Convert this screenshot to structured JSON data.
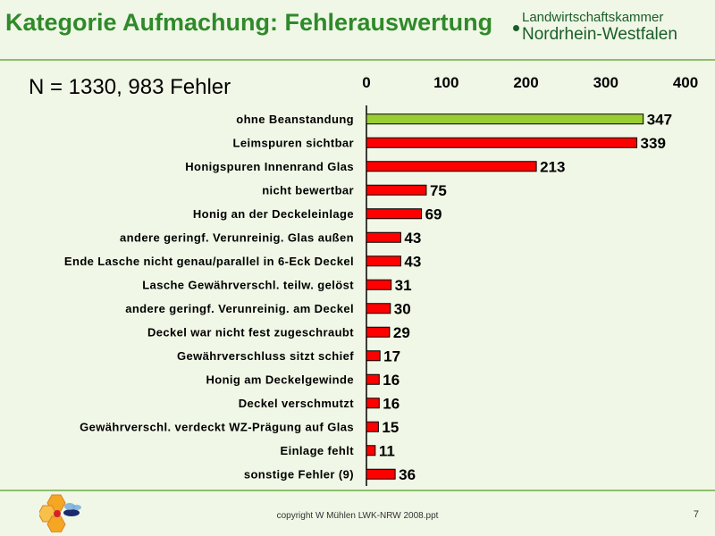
{
  "slide": {
    "title": "Kategorie Aufmachung: Fehlerauswertung",
    "logo_line1": "Landwirtschaftskammer",
    "logo_line2": "Nordrhein-Westfalen",
    "note": "N = 1330, 983 Fehler",
    "footer": "copyright W Mühlen LWK-NRW 2008.ppt",
    "page_number": "7"
  },
  "chart_data": {
    "type": "bar",
    "orientation": "horizontal",
    "xlim": [
      0,
      400
    ],
    "ticks": [
      "0",
      "100",
      "200",
      "300",
      "400"
    ],
    "tick_values": [
      0,
      100,
      200,
      300,
      400
    ],
    "axis_position": "top",
    "grid": false,
    "categories": [
      "ohne Beanstandung",
      "Leimspuren sichtbar",
      "Honigspuren Innenrand  Glas",
      "nicht bewertbar",
      "Honig an der Deckeleinlage",
      "andere geringf. Verunreinig. Glas außen",
      "Ende Lasche nicht genau/parallel in 6-Eck  Deckel",
      "Lasche  Gewährverschl. teilw. gelöst",
      "andere geringf. Verunreinig. am Deckel",
      "Deckel war nicht fest zugeschraubt",
      "Gewährverschluss sitzt schief",
      "Honig am Deckelgewinde",
      "Deckel verschmutzt",
      "Gewährverschl. verdeckt WZ-Prägung auf  Glas",
      "Einlage fehlt",
      "sonstige Fehler (9)"
    ],
    "values": [
      347,
      339,
      213,
      75,
      69,
      43,
      43,
      31,
      30,
      29,
      17,
      16,
      16,
      15,
      11,
      36
    ],
    "colors": [
      "#9acd32",
      "#ff0000",
      "#ff0000",
      "#ff0000",
      "#ff0000",
      "#ff0000",
      "#ff0000",
      "#ff0000",
      "#ff0000",
      "#ff0000",
      "#ff0000",
      "#ff0000",
      "#ff0000",
      "#ff0000",
      "#ff0000",
      "#ff0000"
    ]
  }
}
